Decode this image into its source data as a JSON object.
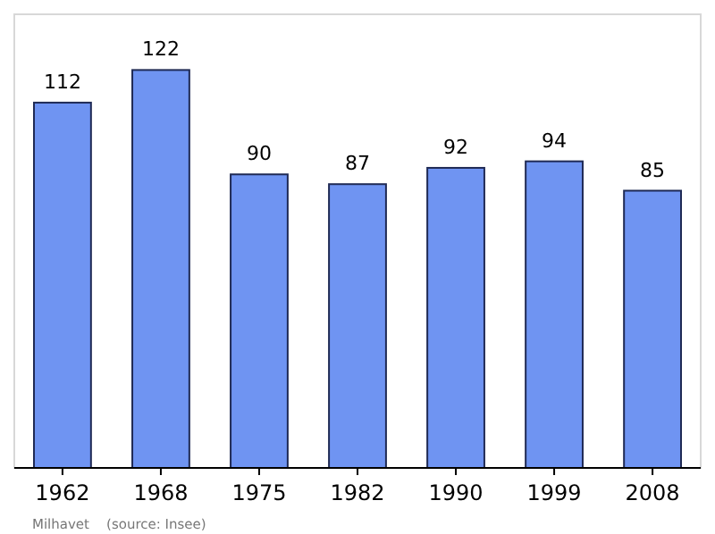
{
  "chart_data": {
    "type": "bar",
    "categories": [
      "1962",
      "1968",
      "1975",
      "1982",
      "1990",
      "1999",
      "2008"
    ],
    "values": [
      112,
      122,
      90,
      87,
      92,
      94,
      85
    ],
    "color": "#6f94f2",
    "data_labels": true,
    "annotations": [
      "Milhavet    (source: Insee)"
    ]
  }
}
